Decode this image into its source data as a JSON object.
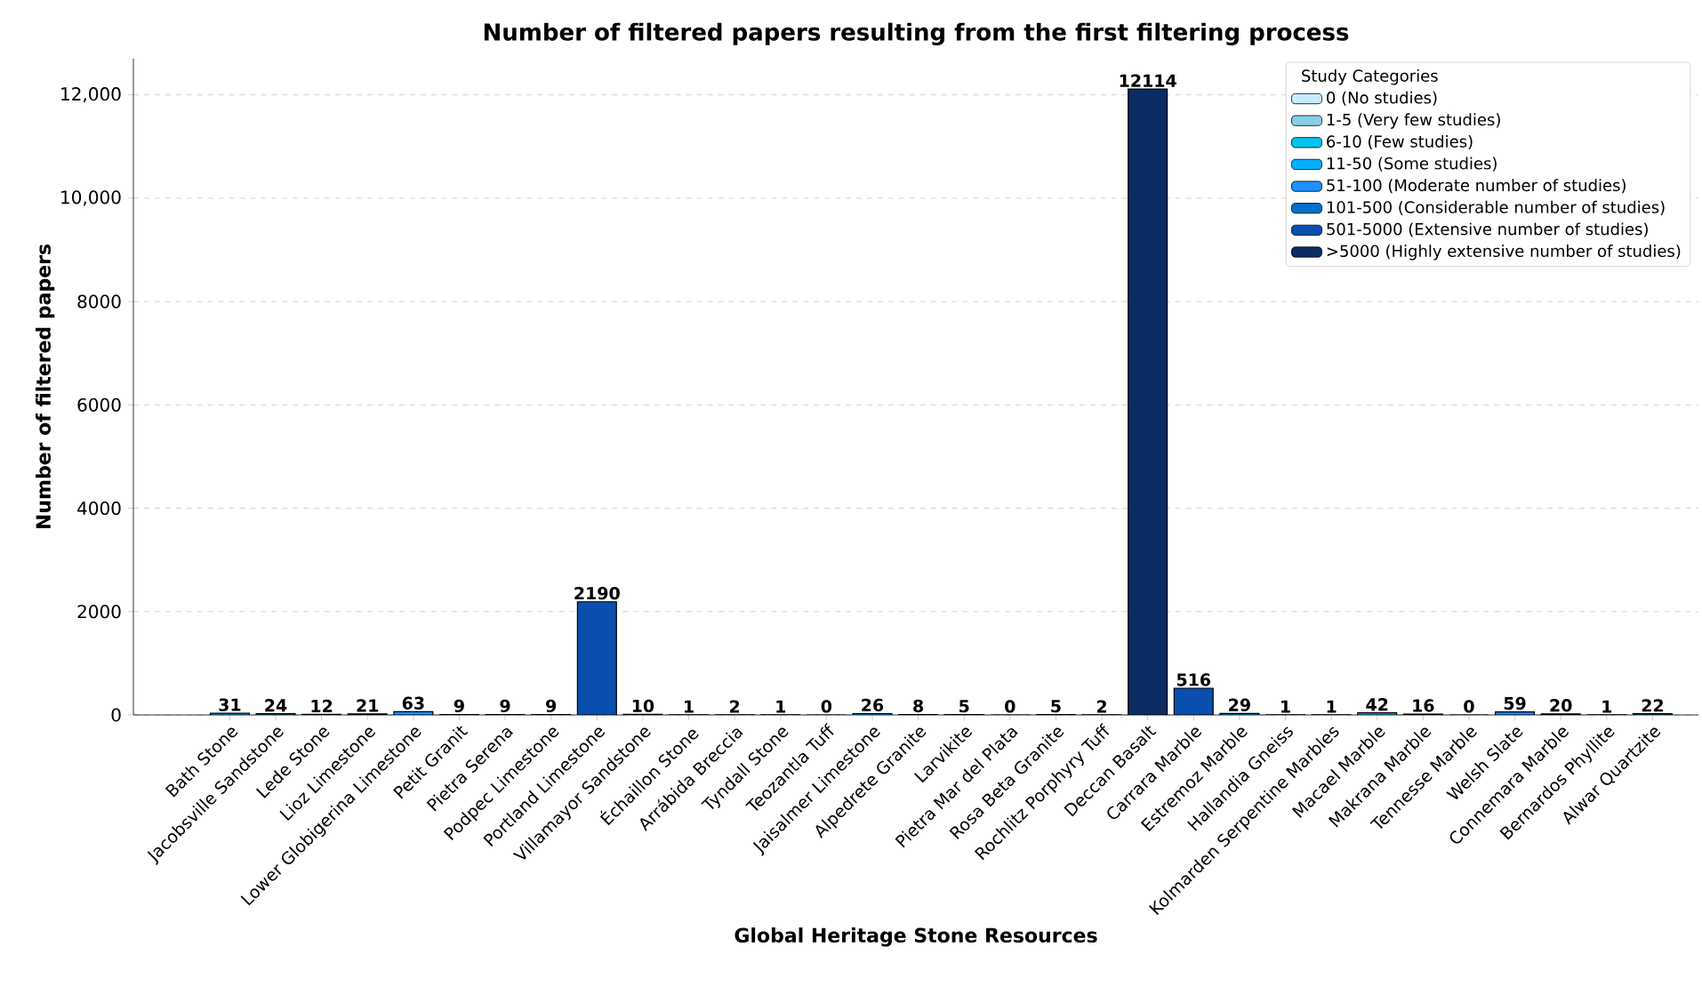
{
  "chart_data": {
    "type": "bar",
    "title": "Number of filtered papers resulting from the first filtering process",
    "xlabel": "Global Heritage Stone Resources",
    "ylabel": "Number of filtered papers",
    "legend_title": "Study Categories",
    "categories": [
      "Bath Stone",
      "Jacobsville Sandstone",
      "Lede Stone",
      "Lioz Limestone",
      "Lower Globigerina Limestone",
      "Petit Granit",
      "Pietra Serena",
      "Podpec Limestone",
      "Portland Limestone",
      "Villamayor Sandstone",
      "Échaillon Stone",
      "Arrábida Breccia",
      "Tyndall Stone",
      "Teozantla Tuff",
      "Jaisalmer Limestone",
      "Alpedrete Granite",
      "Larvikite",
      "Pietra Mar del Plata",
      "Rosa Beta Granite",
      "Rochlitz Porphyry Tuff",
      "Deccan Basalt",
      "Carrara Marble",
      "Estremoz Marble",
      "Hallandia Gneiss",
      "Kolmarden Serpentine Marbles",
      "Macael Marble",
      "Makrana Marble",
      "Tennesse Marble",
      "Welsh Slate",
      "Connemara Marble",
      "Bernardos Phyllite",
      "Alwar Quartzite"
    ],
    "series": [
      {
        "name": "0 (No studies)",
        "color": "#c6ecfa",
        "values": [
          null,
          null,
          null,
          null,
          null,
          null,
          null,
          null,
          null,
          null,
          null,
          null,
          null,
          0,
          null,
          null,
          null,
          0,
          null,
          null,
          null,
          null,
          null,
          null,
          null,
          null,
          null,
          0,
          null,
          null,
          null,
          null
        ]
      },
      {
        "name": "1-5 (Very few studies)",
        "color": "#87ceeb",
        "values": [
          null,
          null,
          null,
          null,
          null,
          null,
          null,
          null,
          null,
          null,
          1,
          2,
          1,
          null,
          null,
          null,
          5,
          null,
          5,
          2,
          null,
          null,
          null,
          1,
          1,
          null,
          null,
          null,
          null,
          null,
          1,
          null
        ]
      },
      {
        "name": "6-10 (Few studies)",
        "color": "#00c4ee",
        "values": [
          null,
          null,
          null,
          null,
          null,
          9,
          9,
          9,
          null,
          10,
          null,
          null,
          null,
          null,
          null,
          8,
          null,
          null,
          null,
          null,
          null,
          null,
          null,
          null,
          null,
          null,
          null,
          null,
          null,
          null,
          null,
          null
        ]
      },
      {
        "name": "11-50 (Some studies)",
        "color": "#00b0ff",
        "values": [
          31,
          24,
          12,
          21,
          null,
          null,
          null,
          null,
          null,
          null,
          null,
          null,
          null,
          null,
          26,
          null,
          null,
          null,
          null,
          null,
          null,
          null,
          29,
          null,
          null,
          42,
          16,
          null,
          null,
          20,
          null,
          22
        ]
      },
      {
        "name": "51-100 (Moderate number of studies)",
        "color": "#1e90ff",
        "values": [
          null,
          null,
          null,
          null,
          63,
          null,
          null,
          null,
          null,
          null,
          null,
          null,
          null,
          null,
          null,
          null,
          null,
          null,
          null,
          null,
          null,
          null,
          null,
          null,
          null,
          null,
          null,
          null,
          59,
          null,
          null,
          null
        ]
      },
      {
        "name": "101-500 (Considerable number of studies)",
        "color": "#0070cc",
        "values": [
          null,
          null,
          null,
          null,
          null,
          null,
          null,
          null,
          null,
          null,
          null,
          null,
          null,
          null,
          null,
          null,
          null,
          null,
          null,
          null,
          null,
          null,
          null,
          null,
          null,
          null,
          null,
          null,
          null,
          null,
          null,
          null
        ]
      },
      {
        "name": "501-5000 (Extensive number of studies)",
        "color": "#0a4fae",
        "values": [
          null,
          null,
          null,
          null,
          null,
          null,
          null,
          null,
          2190,
          null,
          null,
          null,
          null,
          null,
          null,
          null,
          null,
          null,
          null,
          null,
          null,
          516,
          null,
          null,
          null,
          null,
          null,
          null,
          null,
          null,
          null,
          null
        ]
      },
      {
        "name": ">5000 (Highly extensive number of studies)",
        "color": "#0b2d63",
        "values": [
          null,
          null,
          null,
          null,
          null,
          null,
          null,
          null,
          null,
          null,
          null,
          null,
          null,
          null,
          null,
          null,
          null,
          null,
          null,
          null,
          12114,
          null,
          null,
          null,
          null,
          null,
          null,
          null,
          null,
          null,
          null,
          null
        ]
      }
    ],
    "stacked": true,
    "ylim": [
      0,
      12700
    ],
    "yticks": [
      0,
      2000,
      4000,
      6000,
      8000,
      {
        "value": 10000,
        "label": "10,000"
      },
      {
        "value": 12000,
        "label": "12,000"
      }
    ],
    "grid": "y",
    "legend": "top right",
    "data_labels": true
  }
}
